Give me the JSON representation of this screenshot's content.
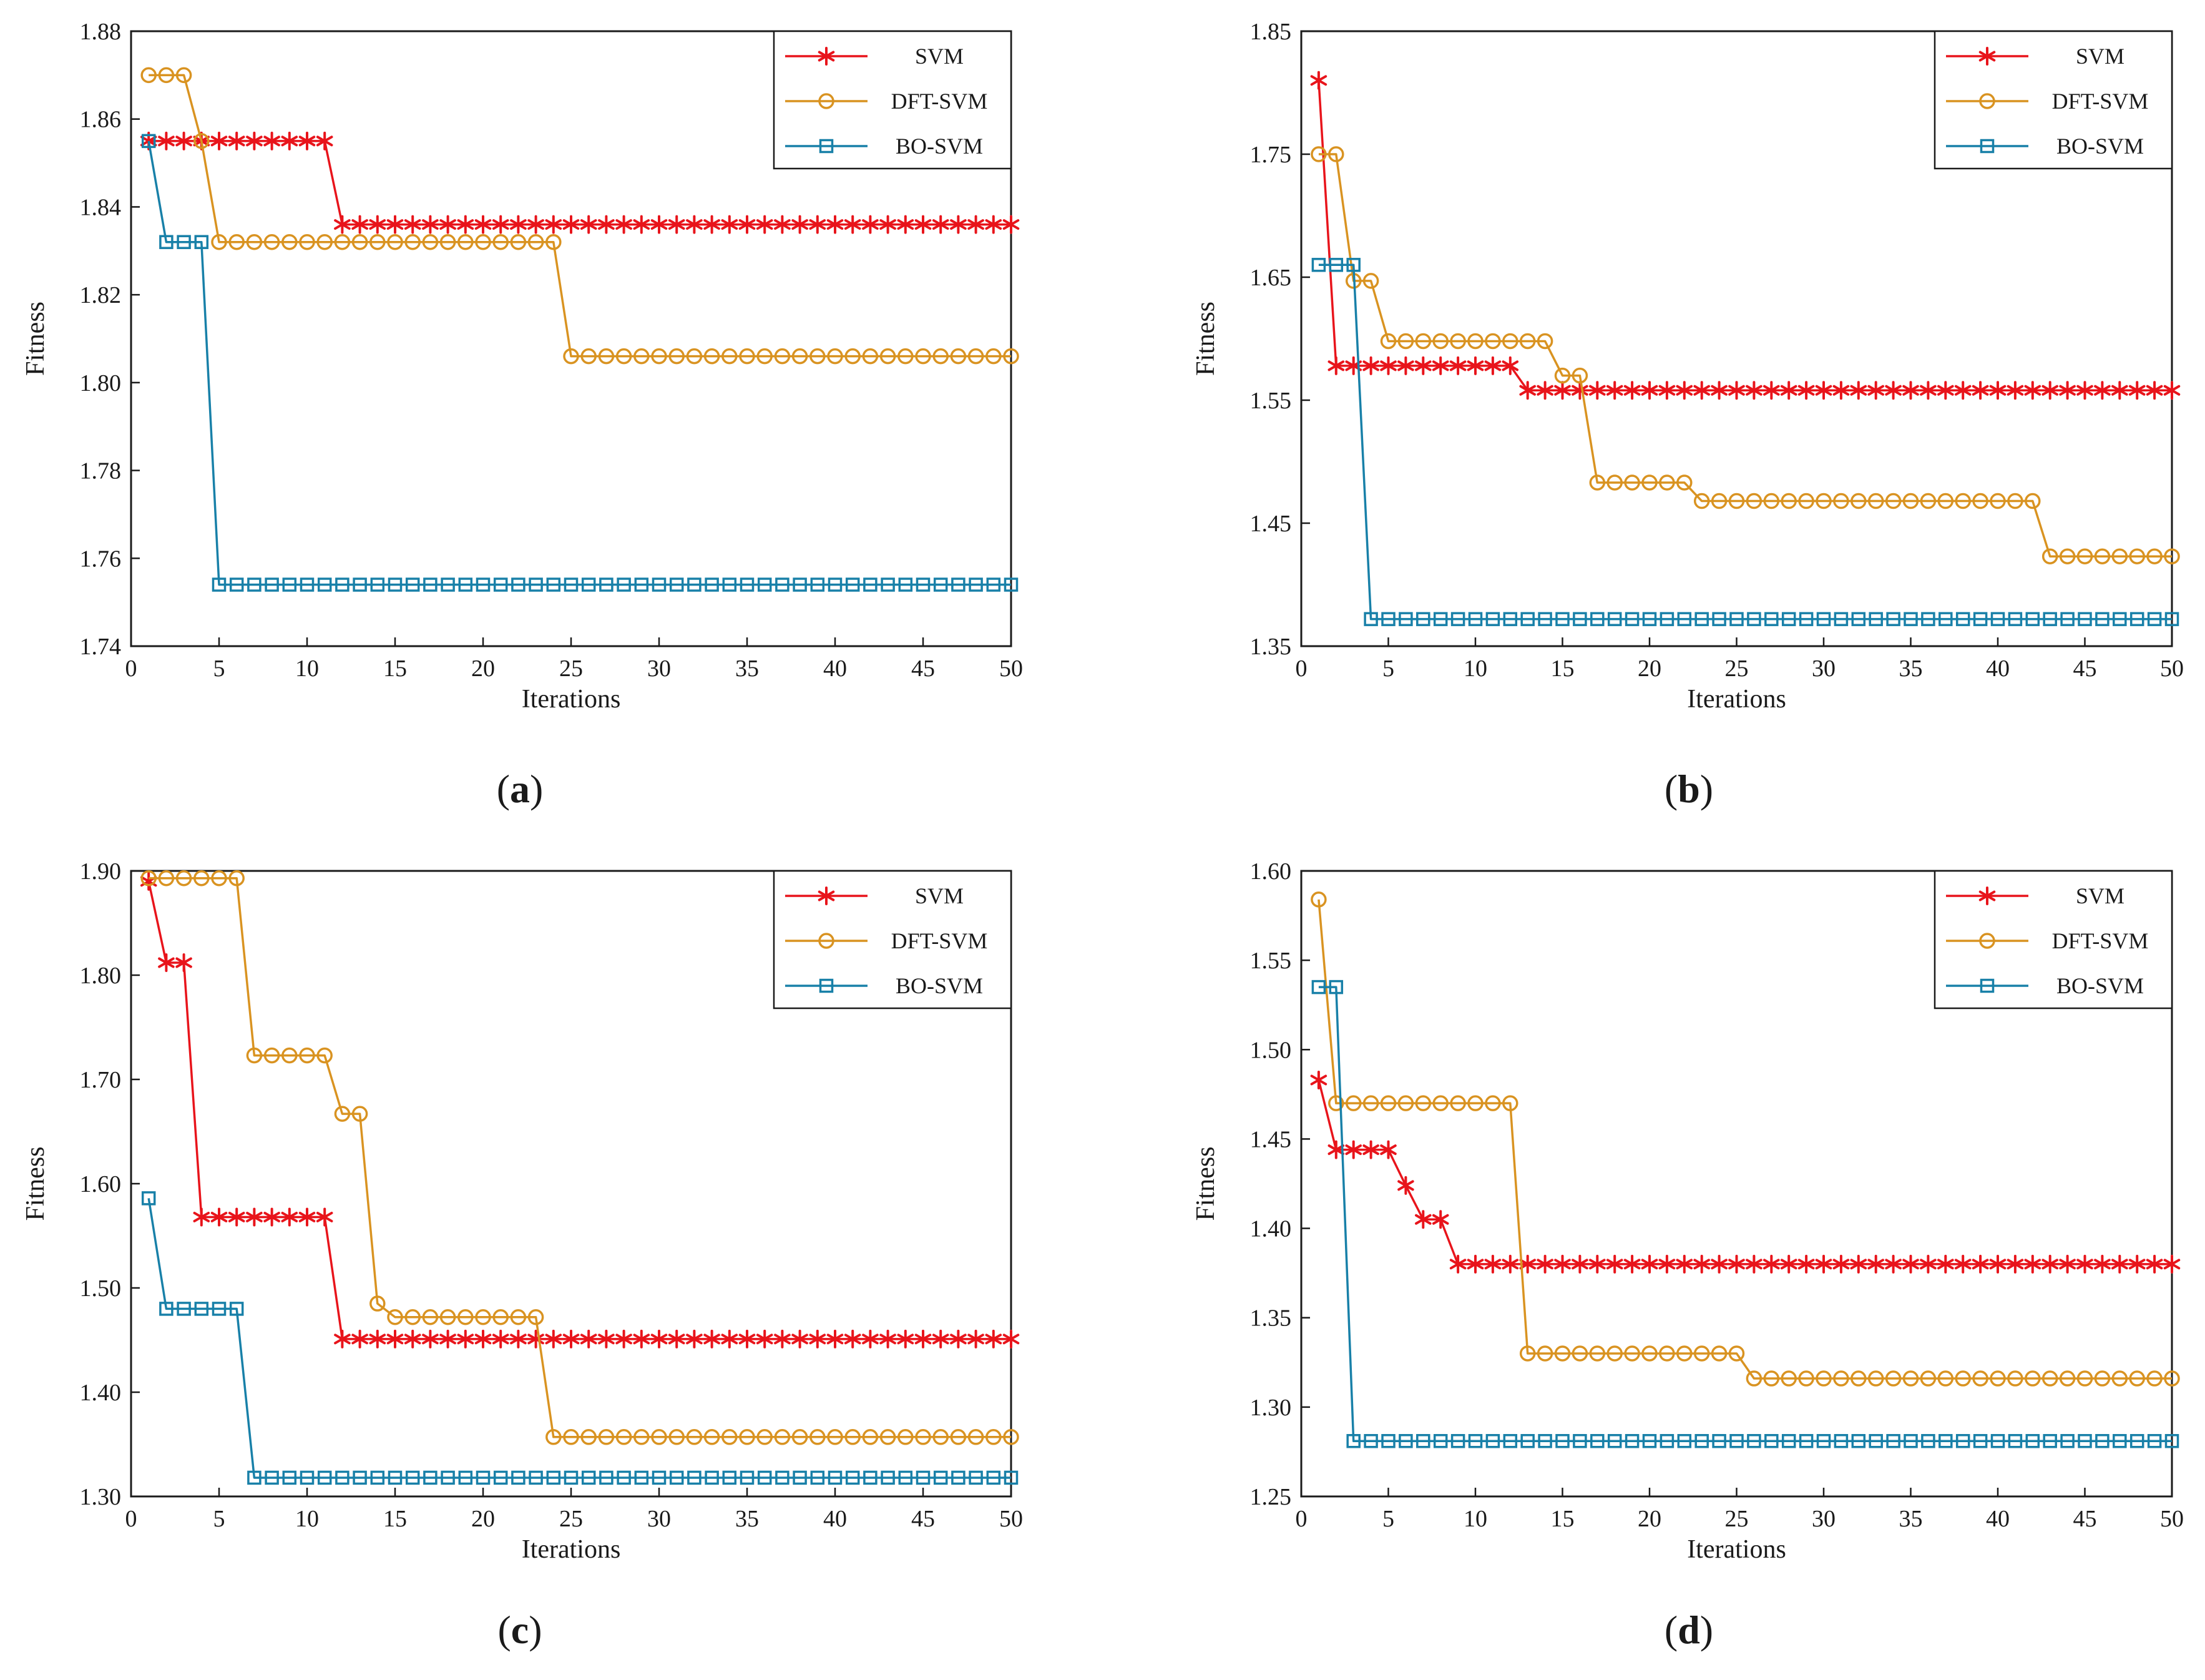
{
  "figure": {
    "legend_entries": [
      "SVM",
      "DFT-SVM",
      "BO-SVM"
    ]
  },
  "colors": {
    "svm": "#e8141b",
    "dft_svm": "#d99321",
    "bo_svm": "#1880a8",
    "axis": "#1a1a1a"
  },
  "chart_data": [
    {
      "type": "line",
      "caption": "a",
      "xlabel": "Iterations",
      "ylabel": "Fitness",
      "xlim": [
        0,
        50
      ],
      "ylim": [
        1.74,
        1.88
      ],
      "xticks": [
        0,
        5,
        10,
        15,
        20,
        25,
        30,
        35,
        40,
        45,
        50
      ],
      "yticks": [
        "1.74",
        "1.76",
        "1.78",
        "1.80",
        "1.82",
        "1.84",
        "1.86",
        "1.88"
      ],
      "legend_position": "top-right",
      "series": [
        {
          "name": "SVM",
          "marker": "asterisk",
          "steps": [
            [
              1,
              1.855
            ],
            [
              12,
              1.836
            ],
            [
              50,
              1.836
            ]
          ]
        },
        {
          "name": "DFT-SVM",
          "marker": "circle",
          "steps": [
            [
              1,
              1.87
            ],
            [
              4,
              1.855
            ],
            [
              5,
              1.832
            ],
            [
              25,
              1.806
            ],
            [
              50,
              1.806
            ]
          ]
        },
        {
          "name": "BO-SVM",
          "marker": "square",
          "steps": [
            [
              1,
              1.855
            ],
            [
              2,
              1.832
            ],
            [
              5,
              1.754
            ],
            [
              50,
              1.754
            ]
          ]
        }
      ]
    },
    {
      "type": "line",
      "caption": "b",
      "xlabel": "Iterations",
      "ylabel": "Fitness",
      "xlim": [
        0,
        50
      ],
      "ylim": [
        1.35,
        1.85
      ],
      "xticks": [
        0,
        5,
        10,
        15,
        20,
        25,
        30,
        35,
        40,
        45,
        50
      ],
      "yticks": [
        "1.35",
        "1.45",
        "1.55",
        "1.65",
        "1.75",
        "1.85"
      ],
      "legend_position": "top-right",
      "series": [
        {
          "name": "SVM",
          "marker": "asterisk",
          "steps": [
            [
              1,
              1.81
            ],
            [
              2,
              1.578
            ],
            [
              13,
              1.558
            ],
            [
              50,
              1.558
            ]
          ]
        },
        {
          "name": "DFT-SVM",
          "marker": "circle",
          "steps": [
            [
              1,
              1.75
            ],
            [
              3,
              1.647
            ],
            [
              5,
              1.598
            ],
            [
              15,
              1.57
            ],
            [
              17,
              1.483
            ],
            [
              23,
              1.468
            ],
            [
              43,
              1.423
            ],
            [
              50,
              1.423
            ]
          ]
        },
        {
          "name": "BO-SVM",
          "marker": "square",
          "steps": [
            [
              1,
              1.66
            ],
            [
              4,
              1.372
            ],
            [
              50,
              1.372
            ]
          ]
        }
      ]
    },
    {
      "type": "line",
      "caption": "c",
      "xlabel": "Iterations",
      "ylabel": "Fitness",
      "xlim": [
        0,
        50
      ],
      "ylim": [
        1.3,
        1.9
      ],
      "xticks": [
        0,
        5,
        10,
        15,
        20,
        25,
        30,
        35,
        40,
        45,
        50
      ],
      "yticks": [
        "1.30",
        "1.40",
        "1.50",
        "1.60",
        "1.70",
        "1.80",
        "1.90"
      ],
      "legend_position": "top-right",
      "series": [
        {
          "name": "SVM",
          "marker": "asterisk",
          "steps": [
            [
              1,
              1.89
            ],
            [
              2,
              1.812
            ],
            [
              4,
              1.568
            ],
            [
              12,
              1.451
            ],
            [
              50,
              1.451
            ]
          ]
        },
        {
          "name": "DFT-SVM",
          "marker": "circle",
          "steps": [
            [
              1,
              1.893
            ],
            [
              7,
              1.723
            ],
            [
              12,
              1.667
            ],
            [
              14,
              1.485
            ],
            [
              15,
              1.472
            ],
            [
              24,
              1.357
            ],
            [
              50,
              1.357
            ]
          ]
        },
        {
          "name": "BO-SVM",
          "marker": "square",
          "steps": [
            [
              1,
              1.586
            ],
            [
              2,
              1.48
            ],
            [
              7,
              1.318
            ],
            [
              50,
              1.318
            ]
          ]
        }
      ]
    },
    {
      "type": "line",
      "caption": "d",
      "xlabel": "Iterations",
      "ylabel": "Fitness",
      "xlim": [
        0,
        50
      ],
      "ylim": [
        1.25,
        1.6
      ],
      "xticks": [
        0,
        5,
        10,
        15,
        20,
        25,
        30,
        35,
        40,
        45,
        50
      ],
      "yticks": [
        "1.25",
        "1.30",
        "1.35",
        "1.40",
        "1.45",
        "1.50",
        "1.55",
        "1.60"
      ],
      "legend_position": "top-right",
      "series": [
        {
          "name": "SVM",
          "marker": "asterisk",
          "steps": [
            [
              1,
              1.483
            ],
            [
              2,
              1.444
            ],
            [
              6,
              1.424
            ],
            [
              7,
              1.405
            ],
            [
              9,
              1.38
            ],
            [
              50,
              1.38
            ]
          ]
        },
        {
          "name": "DFT-SVM",
          "marker": "circle",
          "steps": [
            [
              1,
              1.584
            ],
            [
              2,
              1.47
            ],
            [
              13,
              1.33
            ],
            [
              26,
              1.316
            ],
            [
              50,
              1.316
            ]
          ]
        },
        {
          "name": "BO-SVM",
          "marker": "square",
          "steps": [
            [
              1,
              1.535
            ],
            [
              3,
              1.281
            ],
            [
              50,
              1.281
            ]
          ]
        }
      ]
    }
  ]
}
